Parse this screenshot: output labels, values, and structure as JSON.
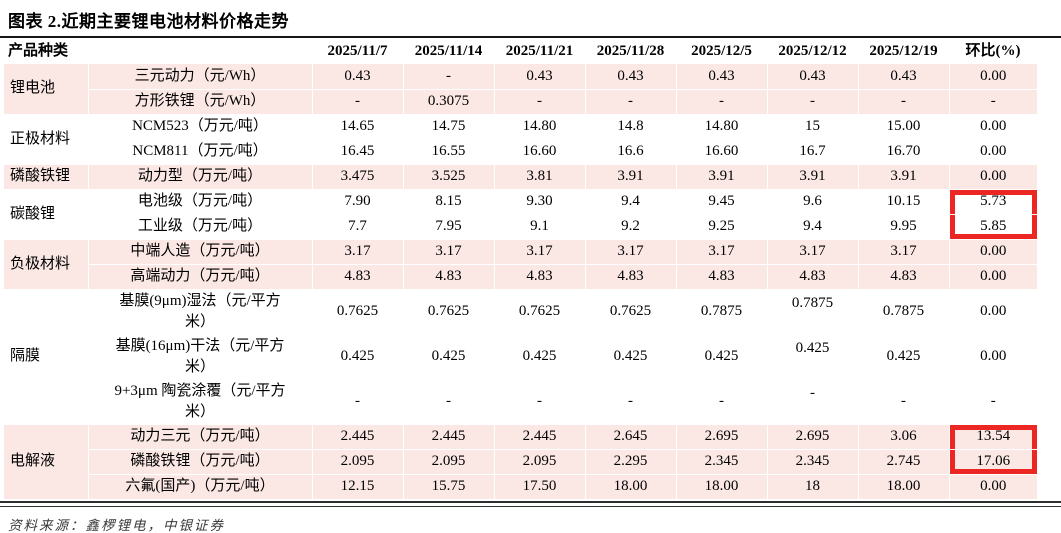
{
  "title": "图表 2.近期主要锂电池材料价格走势",
  "source": "资料来源：鑫椤锂电，中银证券",
  "colors": {
    "row_shade": "#fbe8e5",
    "highlight_red": "#ec2723"
  },
  "table": {
    "product_type_header": "产品种类",
    "date_headers": [
      "2025/11/7",
      "2025/11/14",
      "2025/11/21",
      "2025/11/28",
      "2025/12/5",
      "2025/12/12",
      "2025/12/19"
    ],
    "change_header": "环比(%)",
    "groups": [
      {
        "name": "锂电池",
        "shaded": true,
        "rows": [
          {
            "item": "三元动力（元/Wh）",
            "values": [
              "0.43",
              "-",
              "0.43",
              "0.43",
              "0.43",
              "0.43",
              "0.43",
              "0.00"
            ]
          },
          {
            "item": "方形铁锂（元/Wh）",
            "values": [
              "-",
              "0.3075",
              "-",
              "-",
              "-",
              "-",
              "-",
              "-"
            ]
          }
        ]
      },
      {
        "name": "正极材料",
        "shaded": false,
        "rows": [
          {
            "item": "NCM523（万元/吨）",
            "values": [
              "14.65",
              "14.75",
              "14.80",
              "14.8",
              "14.80",
              "15",
              "15.00",
              "0.00"
            ]
          },
          {
            "item": "NCM811（万元/吨）",
            "values": [
              "16.45",
              "16.55",
              "16.60",
              "16.6",
              "16.60",
              "16.7",
              "16.70",
              "0.00"
            ]
          }
        ]
      },
      {
        "name": "磷酸铁锂",
        "shaded": true,
        "rows": [
          {
            "item": "动力型（万元/吨）",
            "values": [
              "3.475",
              "3.525",
              "3.81",
              "3.91",
              "3.91",
              "3.91",
              "3.91",
              "0.00"
            ]
          }
        ]
      },
      {
        "name": "碳酸锂",
        "shaded": false,
        "rows": [
          {
            "item": "电池级（万元/吨）",
            "values": [
              "7.90",
              "8.15",
              "9.30",
              "9.4",
              "9.45",
              "9.6",
              "10.15",
              "5.73"
            ],
            "hl": "top"
          },
          {
            "item": "工业级（万元/吨）",
            "values": [
              "7.7",
              "7.95",
              "9.1",
              "9.2",
              "9.25",
              "9.4",
              "9.95",
              "5.85"
            ],
            "hl": "bottom"
          }
        ]
      },
      {
        "name": "负极材料",
        "shaded": true,
        "rows": [
          {
            "item": "中端人造（万元/吨）",
            "values": [
              "3.17",
              "3.17",
              "3.17",
              "3.17",
              "3.17",
              "3.17",
              "3.17",
              "0.00"
            ]
          },
          {
            "item": "高端动力（万元/吨）",
            "values": [
              "4.83",
              "4.83",
              "4.83",
              "4.83",
              "4.83",
              "4.83",
              "4.83",
              "0.00"
            ]
          }
        ]
      },
      {
        "name": "隔膜",
        "shaded": false,
        "rows": [
          {
            "item": "基膜(9μm)湿法（元/平方米）",
            "values": [
              "0.7625",
              "0.7625",
              "0.7625",
              "0.7625",
              "0.7875",
              "0.7875",
              "0.7875",
              "0.00"
            ],
            "lift_col": 5
          },
          {
            "item": "基膜(16μm)干法（元/平方米）",
            "values": [
              "0.425",
              "0.425",
              "0.425",
              "0.425",
              "0.425",
              "0.425",
              "0.425",
              "0.00"
            ],
            "lift_col": 5
          },
          {
            "item": "9+3μm 陶瓷涂覆（元/平方米）",
            "values": [
              "-",
              "-",
              "-",
              "-",
              "-",
              "-",
              "-",
              "-"
            ],
            "lift_col": 5
          }
        ]
      },
      {
        "name": "电解液",
        "shaded": true,
        "rows": [
          {
            "item": "动力三元（万元/吨）",
            "values": [
              "2.445",
              "2.445",
              "2.445",
              "2.645",
              "2.695",
              "2.695",
              "3.06",
              "13.54"
            ],
            "hl": "top"
          },
          {
            "item": "磷酸铁锂（万元/吨）",
            "values": [
              "2.095",
              "2.095",
              "2.095",
              "2.295",
              "2.345",
              "2.345",
              "2.745",
              "17.06"
            ],
            "hl": "bottom"
          },
          {
            "item": "六氟(国产)（万元/吨）",
            "values": [
              "12.15",
              "15.75",
              "17.50",
              "18.00",
              "18.00",
              "18",
              "18.00",
              "0.00"
            ]
          }
        ]
      }
    ]
  }
}
